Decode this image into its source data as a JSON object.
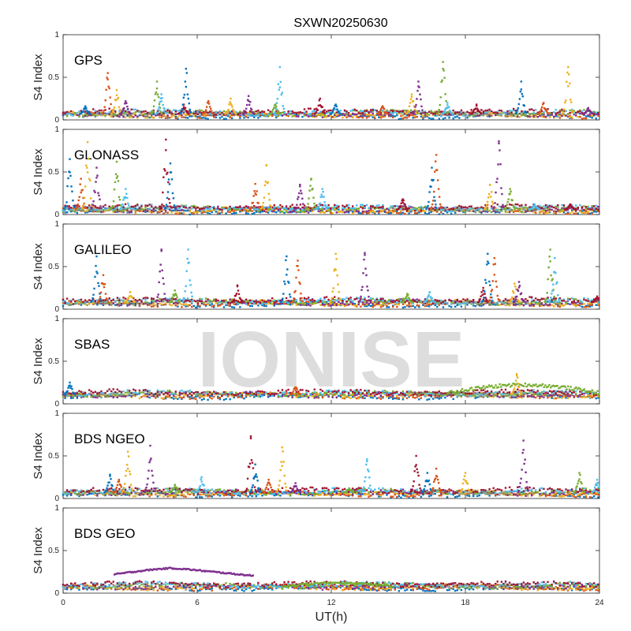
{
  "chart_data": {
    "type": "scatter",
    "title": "SXWN20250630",
    "xlabel": "UT(h)",
    "ylabel": "S4 Index",
    "xlim": [
      0,
      24
    ],
    "ylim": [
      0,
      1
    ],
    "xticks": [
      "0",
      "6",
      "12",
      "18",
      "24"
    ],
    "yticks": [
      "0",
      "0.5",
      "1"
    ],
    "watermark": "IONISE",
    "colors": [
      "#0072BD",
      "#D95319",
      "#EDB120",
      "#7E2F8E",
      "#77AC30",
      "#4DBEEE",
      "#A2142F"
    ],
    "panels": [
      {
        "name": "GPS",
        "baseline": 0.07,
        "spikes": [
          [
            1.0,
            0.16
          ],
          [
            2.0,
            0.55
          ],
          [
            2.4,
            0.35
          ],
          [
            2.8,
            0.22
          ],
          [
            4.2,
            0.45
          ],
          [
            4.4,
            0.3
          ],
          [
            5.4,
            0.18
          ],
          [
            5.5,
            0.6
          ],
          [
            6.5,
            0.22
          ],
          [
            7.5,
            0.25
          ],
          [
            8.3,
            0.28
          ],
          [
            9.5,
            0.18
          ],
          [
            9.7,
            0.62
          ],
          [
            11.5,
            0.25
          ],
          [
            12.2,
            0.18
          ],
          [
            14.3,
            0.16
          ],
          [
            15.6,
            0.3
          ],
          [
            15.9,
            0.45
          ],
          [
            17.0,
            0.68
          ],
          [
            17.2,
            0.2
          ],
          [
            18.5,
            0.18
          ],
          [
            20.5,
            0.45
          ],
          [
            21.5,
            0.2
          ],
          [
            22.6,
            0.62
          ],
          [
            23.5,
            0.14
          ]
        ]
      },
      {
        "name": "GLONASS",
        "baseline": 0.06,
        "spikes": [
          [
            0.3,
            0.65
          ],
          [
            0.8,
            0.42
          ],
          [
            1.1,
            0.85
          ],
          [
            1.5,
            0.55
          ],
          [
            2.4,
            0.62
          ],
          [
            2.8,
            0.3
          ],
          [
            4.6,
            0.88
          ],
          [
            4.8,
            0.6
          ],
          [
            8.6,
            0.36
          ],
          [
            9.1,
            0.58
          ],
          [
            10.6,
            0.35
          ],
          [
            11.1,
            0.42
          ],
          [
            11.6,
            0.3
          ],
          [
            15.2,
            0.18
          ],
          [
            16.5,
            0.55
          ],
          [
            16.7,
            0.7
          ],
          [
            19.1,
            0.35
          ],
          [
            19.5,
            0.86
          ],
          [
            20.0,
            0.3
          ],
          [
            21.1,
            0.12
          ],
          [
            22.7,
            0.12
          ]
        ]
      },
      {
        "name": "GALILEO",
        "baseline": 0.08,
        "spikes": [
          [
            1.5,
            0.62
          ],
          [
            1.8,
            0.4
          ],
          [
            3.0,
            0.2
          ],
          [
            4.4,
            0.7
          ],
          [
            5.0,
            0.22
          ],
          [
            5.6,
            0.7
          ],
          [
            7.8,
            0.28
          ],
          [
            10.0,
            0.62
          ],
          [
            10.5,
            0.57
          ],
          [
            12.2,
            0.65
          ],
          [
            13.5,
            0.66
          ],
          [
            15.4,
            0.18
          ],
          [
            16.4,
            0.2
          ],
          [
            18.8,
            0.25
          ],
          [
            19.0,
            0.65
          ],
          [
            19.3,
            0.6
          ],
          [
            20.2,
            0.3
          ],
          [
            20.4,
            0.32
          ],
          [
            21.8,
            0.7
          ],
          [
            22.0,
            0.6
          ],
          [
            23.9,
            0.15
          ]
        ]
      },
      {
        "name": "SBAS",
        "baseline": 0.11,
        "band": [
          17.2,
          24.0,
          0.25
        ],
        "spikes": [
          [
            0.3,
            0.25
          ],
          [
            10.4,
            0.2
          ],
          [
            20.3,
            0.35
          ]
        ]
      },
      {
        "name": "BDS NGEO",
        "baseline": 0.07,
        "spikes": [
          [
            2.1,
            0.28
          ],
          [
            2.5,
            0.22
          ],
          [
            2.9,
            0.55
          ],
          [
            3.9,
            0.62
          ],
          [
            5.0,
            0.16
          ],
          [
            6.2,
            0.25
          ],
          [
            8.4,
            0.73
          ],
          [
            8.6,
            0.4
          ],
          [
            9.2,
            0.22
          ],
          [
            9.8,
            0.6
          ],
          [
            10.4,
            0.18
          ],
          [
            12.8,
            0.12
          ],
          [
            13.6,
            0.46
          ],
          [
            15.8,
            0.5
          ],
          [
            16.3,
            0.3
          ],
          [
            16.7,
            0.35
          ],
          [
            18.0,
            0.3
          ],
          [
            20.6,
            0.68
          ],
          [
            23.1,
            0.3
          ],
          [
            23.9,
            0.22
          ]
        ]
      },
      {
        "name": "BDS GEO",
        "baseline": 0.08,
        "arc": [
          2.3,
          8.5,
          0.22,
          0.3
        ],
        "bump": [
          9.8,
          14.8,
          0.12
        ],
        "spikes": []
      }
    ]
  }
}
